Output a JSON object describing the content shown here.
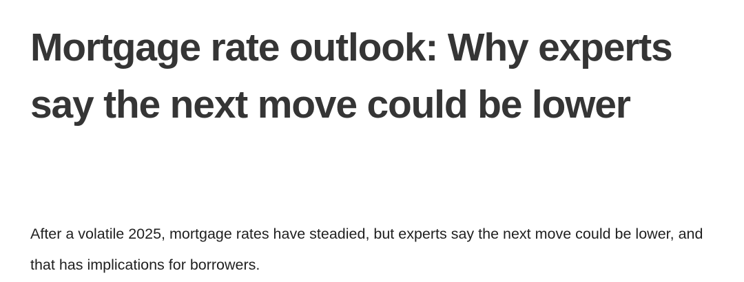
{
  "article": {
    "headline": "Mortgage rate outlook: Why experts say the next move could be lower",
    "dek": "After a volatile 2025, mortgage rates have steadied, but experts say the next move could be lower, and that has implications for borrowers."
  }
}
